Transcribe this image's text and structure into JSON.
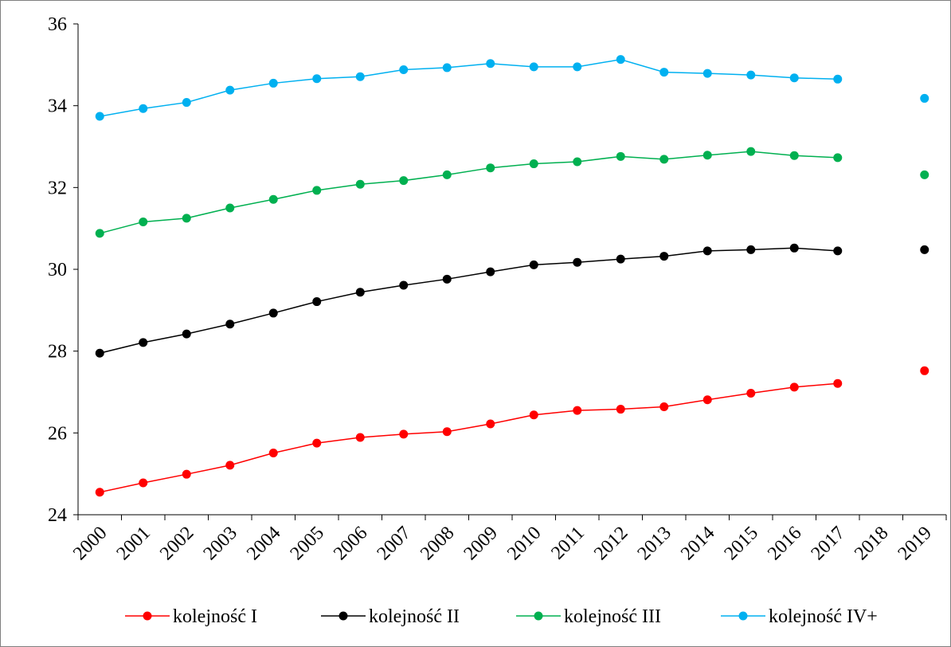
{
  "chart_data": {
    "type": "line",
    "title": "",
    "xlabel": "",
    "ylabel": "",
    "categories": [
      "2000",
      "2001",
      "2002",
      "2003",
      "2004",
      "2005",
      "2006",
      "2007",
      "2008",
      "2009",
      "2010",
      "2011",
      "2012",
      "2013",
      "2014",
      "2015",
      "2016",
      "2017",
      "2018",
      "2019"
    ],
    "ylim": [
      24,
      36
    ],
    "yticks": [
      24,
      26,
      28,
      30,
      32,
      34,
      36
    ],
    "grid": false,
    "legend_position": "bottom",
    "series": [
      {
        "name": "kolejność I",
        "color": "#ff0000",
        "values": [
          24.55,
          24.78,
          24.99,
          25.21,
          25.51,
          25.75,
          25.89,
          25.97,
          26.03,
          26.22,
          26.44,
          26.55,
          26.58,
          26.64,
          26.81,
          26.97,
          27.12,
          27.21,
          null,
          27.52
        ]
      },
      {
        "name": "kolejność II",
        "color": "#000000",
        "values": [
          27.95,
          28.21,
          28.42,
          28.66,
          28.93,
          29.21,
          29.44,
          29.61,
          29.76,
          29.94,
          30.11,
          30.17,
          30.25,
          30.32,
          30.45,
          30.48,
          30.52,
          30.45,
          null,
          30.48
        ]
      },
      {
        "name": "kolejność III",
        "color": "#00b050",
        "values": [
          30.88,
          31.16,
          31.25,
          31.5,
          31.71,
          31.93,
          32.08,
          32.17,
          32.31,
          32.48,
          32.58,
          32.63,
          32.76,
          32.69,
          32.79,
          32.88,
          32.78,
          32.73,
          null,
          32.31
        ]
      },
      {
        "name": "kolejność IV+",
        "color": "#00b0f0",
        "values": [
          33.74,
          33.93,
          34.08,
          34.38,
          34.55,
          34.66,
          34.71,
          34.88,
          34.93,
          35.03,
          34.95,
          34.95,
          35.13,
          34.82,
          34.79,
          34.75,
          34.68,
          34.65,
          null,
          34.18
        ]
      }
    ]
  }
}
